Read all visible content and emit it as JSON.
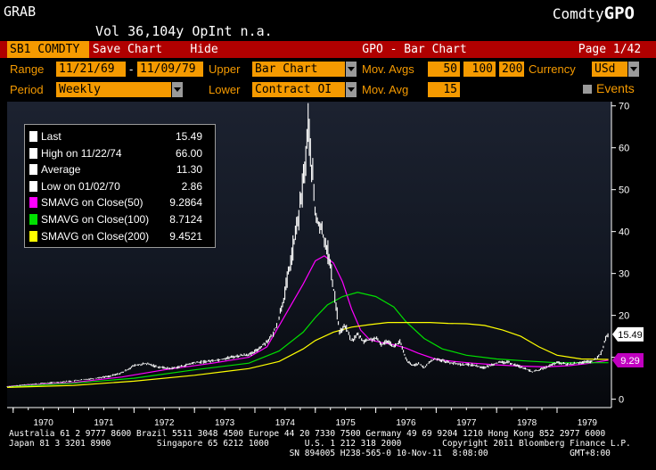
{
  "header": {
    "security": "GRAB",
    "function_prefix": "Comdty",
    "function_code": "GPO",
    "volume_line": "Vol 36,104y OpInt n.a."
  },
  "toolbar": {
    "ticker": "SB1 COMDTY",
    "save_chart": "Save Chart",
    "hide": "Hide",
    "title": "GPO - Bar Chart",
    "page": "Page 1/42"
  },
  "params": {
    "range_label": "Range",
    "range_from": "11/21/69",
    "range_sep": "-",
    "range_to": "11/09/79",
    "upper_label": "Upper",
    "upper_value": "Bar Chart",
    "mov_avgs_label": "Mov. Avgs",
    "mov_avgs": [
      "50",
      "100",
      "200"
    ],
    "currency_label": "Currency",
    "currency_value": "USd",
    "period_label": "Period",
    "period_value": "Weekly",
    "lower_label": "Lower",
    "lower_value": "Contract OI",
    "mov_avg_label": "Mov. Avg",
    "mov_avg_value": "15",
    "events_label": "Events"
  },
  "legend": [
    {
      "label": "Last",
      "value": "15.49",
      "color": "#ffffff"
    },
    {
      "label": "High on 11/22/74",
      "value": "66.00",
      "color": "#ffffff"
    },
    {
      "label": "Average",
      "value": "11.30",
      "color": "#ffffff"
    },
    {
      "label": "Low on 01/02/70",
      "value": "2.86",
      "color": "#ffffff"
    },
    {
      "label": "SMAVG on Close(50)",
      "value": "9.2864",
      "color": "#ff00ff"
    },
    {
      "label": "SMAVG on Close(100)",
      "value": "8.7124",
      "color": "#00e000"
    },
    {
      "label": "SMAVG on Close(200)",
      "value": "9.4521",
      "color": "#ffff00"
    }
  ],
  "chart_data": {
    "type": "line",
    "ylim": [
      -2,
      71
    ],
    "yticks": [
      0,
      10,
      20,
      30,
      40,
      50,
      60,
      70
    ],
    "xticks": [
      "1970",
      "1971",
      "1972",
      "1973",
      "1974",
      "1975",
      "1976",
      "1977",
      "1978",
      "1979"
    ],
    "xlim": [
      1969.9,
      1979.9
    ],
    "last_label": "15.49",
    "ma_label": "9.29",
    "price": {
      "x": [
        1969.9,
        1970.3,
        1970.7,
        1971.0,
        1971.3,
        1971.6,
        1971.8,
        1972.0,
        1972.2,
        1972.4,
        1972.6,
        1972.8,
        1973.0,
        1973.2,
        1973.4,
        1973.6,
        1973.8,
        1973.95,
        1974.1,
        1974.2,
        1974.3,
        1974.4,
        1974.5,
        1974.6,
        1974.65,
        1974.7,
        1974.75,
        1974.8,
        1974.85,
        1974.88,
        1974.92,
        1974.97,
        1975.0,
        1975.1,
        1975.2,
        1975.3,
        1975.35,
        1975.4,
        1975.5,
        1975.6,
        1975.7,
        1975.8,
        1975.9,
        1976.0,
        1976.1,
        1976.2,
        1976.3,
        1976.4,
        1976.5,
        1976.6,
        1976.7,
        1976.8,
        1976.9,
        1977.0,
        1977.2,
        1977.4,
        1977.6,
        1977.8,
        1978.0,
        1978.2,
        1978.4,
        1978.6,
        1978.8,
        1979.0,
        1979.2,
        1979.4,
        1979.55,
        1979.65,
        1979.75,
        1979.8,
        1979.85
      ],
      "y": [
        3.0,
        3.6,
        4.0,
        4.4,
        4.9,
        5.5,
        6.3,
        8.0,
        8.5,
        7.7,
        7.3,
        7.9,
        8.7,
        9.0,
        9.4,
        10.0,
        10.5,
        10.8,
        12.5,
        13.8,
        15.4,
        19.5,
        25.5,
        33.5,
        37.5,
        41.5,
        46.0,
        52.0,
        58.5,
        66.0,
        58.5,
        51.0,
        43.5,
        40.5,
        36.0,
        26.5,
        22.0,
        16.0,
        17.5,
        13.8,
        15.5,
        13.8,
        14.2,
        14.5,
        13.0,
        14.0,
        12.5,
        13.8,
        9.5,
        8.0,
        8.5,
        7.5,
        9.0,
        9.7,
        8.8,
        8.3,
        8.2,
        7.5,
        8.7,
        8.8,
        7.7,
        6.5,
        7.5,
        8.7,
        8.3,
        8.8,
        8.9,
        9.6,
        11.5,
        14.5,
        15.5
      ],
      "hi": [
        66.0
      ]
    },
    "series": [
      {
        "name": "SMAVG on Close(50)",
        "color": "#ff00ff",
        "x": [
          1969.9,
          1971.0,
          1971.8,
          1972.5,
          1973.3,
          1973.9,
          1974.2,
          1974.5,
          1974.8,
          1975.0,
          1975.15,
          1975.3,
          1975.45,
          1975.6,
          1975.75,
          1975.9,
          1976.1,
          1976.3,
          1976.5,
          1976.7,
          1977.0,
          1977.3,
          1977.6,
          1978.0,
          1978.4,
          1978.8,
          1979.2,
          1979.5,
          1979.85
        ],
        "y": [
          3.0,
          4.0,
          5.3,
          7.0,
          8.6,
          10.0,
          12.5,
          20.0,
          27.5,
          33.0,
          34.2,
          32.5,
          28.0,
          21.5,
          16.5,
          14.2,
          13.5,
          13.0,
          12.2,
          11.0,
          9.5,
          9.0,
          8.6,
          8.2,
          7.9,
          7.7,
          8.0,
          8.5,
          9.3
        ]
      },
      {
        "name": "SMAVG on Close(100)",
        "color": "#00e000",
        "x": [
          1969.9,
          1971.0,
          1972.0,
          1973.0,
          1973.9,
          1974.4,
          1974.8,
          1975.0,
          1975.2,
          1975.45,
          1975.7,
          1976.0,
          1976.3,
          1976.5,
          1976.8,
          1977.1,
          1977.5,
          1978.0,
          1978.5,
          1979.0,
          1979.5,
          1979.85
        ],
        "y": [
          2.9,
          3.8,
          5.0,
          7.0,
          8.6,
          11.5,
          16.0,
          19.5,
          22.5,
          24.5,
          25.5,
          24.5,
          22.0,
          18.5,
          14.5,
          12.0,
          10.5,
          9.6,
          9.1,
          8.7,
          8.7,
          8.7
        ]
      },
      {
        "name": "SMAVG on Close(200)",
        "color": "#ffff00",
        "x": [
          1969.9,
          1971.0,
          1972.0,
          1973.0,
          1973.9,
          1974.4,
          1974.8,
          1975.0,
          1975.3,
          1975.6,
          1975.9,
          1976.2,
          1976.5,
          1976.9,
          1977.2,
          1977.5,
          1977.8,
          1978.1,
          1978.4,
          1978.7,
          1979.0,
          1979.4,
          1979.85
        ],
        "y": [
          2.8,
          3.3,
          4.3,
          5.7,
          7.3,
          9.0,
          12.0,
          14.0,
          16.0,
          17.2,
          17.8,
          18.3,
          18.3,
          18.3,
          18.1,
          18.0,
          17.6,
          16.5,
          15.0,
          12.5,
          10.5,
          9.6,
          9.5
        ]
      }
    ]
  },
  "footer": {
    "line1": "Australia 61 2 9777 8600 Brazil 5511 3048 4500 Europe 44 20 7330 7500 Germany 49 69 9204 1210 Hong Kong 852 2977 6000",
    "line2": "Japan 81 3 3201 8900         Singapore 65 6212 1000       U.S. 1 212 318 2000        Copyright 2011 Bloomberg Finance L.P.",
    "line3": "                                                       SN 894005 H238-565-0 10-Nov-11  8:08:00                GMT+8:00"
  }
}
